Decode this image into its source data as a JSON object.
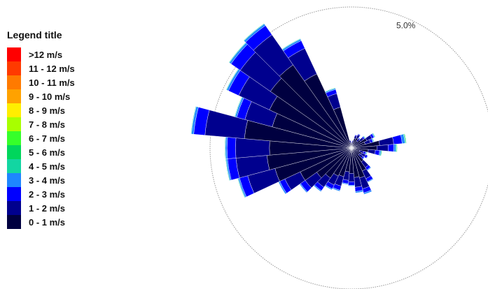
{
  "legend": {
    "title": "Legend title",
    "items": [
      {
        "label": ">12 m/s",
        "color": "#ff0000"
      },
      {
        "label": "11 - 12 m/s",
        "color": "#ff3a00"
      },
      {
        "label": "10 - 11 m/s",
        "color": "#ff7a00"
      },
      {
        "label": "9 - 10 m/s",
        "color": "#ffa200"
      },
      {
        "label": "8 - 9 m/s",
        "color": "#ffee00"
      },
      {
        "label": "7 - 8 m/s",
        "color": "#a8ff00"
      },
      {
        "label": "6 - 7 m/s",
        "color": "#36ff2a"
      },
      {
        "label": "5 - 6 m/s",
        "color": "#00d65c"
      },
      {
        "label": "4 - 5 m/s",
        "color": "#12d6a2"
      },
      {
        "label": "3 - 4 m/s",
        "color": "#1e86ff"
      },
      {
        "label": "2 - 3 m/s",
        "color": "#0000ff"
      },
      {
        "label": "1 - 2 m/s",
        "color": "#00008e"
      },
      {
        "label": "0 - 1 m/s",
        "color": "#000040"
      }
    ]
  },
  "chart_data": {
    "type": "windrose",
    "ring_labels": [
      "5.0%"
    ],
    "ring_values": [
      5.0
    ],
    "sector_width_deg": 10,
    "speed_bins": [
      "0 - 1 m/s",
      "1 - 2 m/s",
      "2 - 3 m/s",
      "3 - 4 m/s",
      "4 - 5 m/s",
      "5 - 6 m/s"
    ],
    "bin_colors": [
      "#000040",
      "#00008e",
      "#0000ff",
      "#1e86ff",
      "#12d6a2",
      "#00d65c"
    ],
    "sectors": [
      {
        "direction_deg": 0,
        "frequencies": [
          0.15,
          0.05,
          0.02,
          0,
          0,
          0
        ]
      },
      {
        "direction_deg": 10,
        "frequencies": [
          0.2,
          0.05,
          0.02,
          0,
          0,
          0
        ]
      },
      {
        "direction_deg": 20,
        "frequencies": [
          0.35,
          0.1,
          0.03,
          0,
          0,
          0
        ]
      },
      {
        "direction_deg": 30,
        "frequencies": [
          0.4,
          0.12,
          0.03,
          0.01,
          0,
          0
        ]
      },
      {
        "direction_deg": 40,
        "frequencies": [
          0.3,
          0.1,
          0.03,
          0.02,
          0,
          0
        ]
      },
      {
        "direction_deg": 50,
        "frequencies": [
          0.4,
          0.12,
          0.05,
          0.02,
          0.02,
          0
        ]
      },
      {
        "direction_deg": 60,
        "frequencies": [
          0.6,
          0.2,
          0.08,
          0.03,
          0.02,
          0
        ]
      },
      {
        "direction_deg": 70,
        "frequencies": [
          0.5,
          0.2,
          0.08,
          0.03,
          0.02,
          0
        ]
      },
      {
        "direction_deg": 80,
        "frequencies": [
          1.0,
          0.5,
          0.3,
          0.1,
          0.03,
          0.02
        ]
      },
      {
        "direction_deg": 90,
        "frequencies": [
          0.9,
          0.4,
          0.2,
          0.07,
          0.03,
          0.02
        ]
      },
      {
        "direction_deg": 100,
        "frequencies": [
          0.6,
          0.25,
          0.15,
          0.05,
          0.03,
          0.01
        ]
      },
      {
        "direction_deg": 110,
        "frequencies": [
          0.3,
          0.15,
          0.08,
          0.03,
          0.02,
          0
        ]
      },
      {
        "direction_deg": 120,
        "frequencies": [
          0.4,
          0.15,
          0.08,
          0.02,
          0,
          0
        ]
      },
      {
        "direction_deg": 130,
        "frequencies": [
          0.35,
          0.15,
          0.05,
          0.02,
          0,
          0
        ]
      },
      {
        "direction_deg": 140,
        "frequencies": [
          0.6,
          0.25,
          0.1,
          0.03,
          0,
          0
        ]
      },
      {
        "direction_deg": 150,
        "frequencies": [
          0.9,
          0.3,
          0.12,
          0.03,
          0,
          0
        ]
      },
      {
        "direction_deg": 160,
        "frequencies": [
          1.1,
          0.4,
          0.15,
          0.05,
          0,
          0
        ]
      },
      {
        "direction_deg": 170,
        "frequencies": [
          1.05,
          0.35,
          0.15,
          0.05,
          0,
          0
        ]
      },
      {
        "direction_deg": 180,
        "frequencies": [
          0.9,
          0.3,
          0.12,
          0.03,
          0,
          0
        ]
      },
      {
        "direction_deg": 190,
        "frequencies": [
          0.85,
          0.3,
          0.12,
          0.03,
          0,
          0
        ]
      },
      {
        "direction_deg": 200,
        "frequencies": [
          1.05,
          0.35,
          0.15,
          0.04,
          0,
          0
        ]
      },
      {
        "direction_deg": 210,
        "frequencies": [
          1.1,
          0.35,
          0.15,
          0.04,
          0,
          0
        ]
      },
      {
        "direction_deg": 220,
        "frequencies": [
          1.3,
          0.4,
          0.15,
          0.04,
          0,
          0
        ]
      },
      {
        "direction_deg": 230,
        "frequencies": [
          1.5,
          0.5,
          0.2,
          0.04,
          0,
          0
        ]
      },
      {
        "direction_deg": 240,
        "frequencies": [
          2.0,
          0.6,
          0.2,
          0.05,
          0,
          0
        ]
      },
      {
        "direction_deg": 250,
        "frequencies": [
          2.8,
          1.0,
          0.3,
          0.05,
          0.02,
          0
        ]
      },
      {
        "direction_deg": 260,
        "frequencies": [
          3.0,
          1.1,
          0.3,
          0.05,
          0.02,
          0
        ]
      },
      {
        "direction_deg": 270,
        "frequencies": [
          2.9,
          1.2,
          0.3,
          0.06,
          0.02,
          0
        ]
      },
      {
        "direction_deg": 280,
        "frequencies": [
          3.8,
          1.4,
          0.4,
          0.08,
          0.02,
          0
        ]
      },
      {
        "direction_deg": 290,
        "frequencies": [
          2.9,
          1.0,
          0.3,
          0.06,
          0.02,
          0
        ]
      },
      {
        "direction_deg": 300,
        "frequencies": [
          3.2,
          1.2,
          0.4,
          0.07,
          0.02,
          0
        ]
      },
      {
        "direction_deg": 310,
        "frequencies": [
          3.5,
          1.3,
          0.4,
          0.07,
          0.02,
          0
        ]
      },
      {
        "direction_deg": 320,
        "frequencies": [
          3.6,
          1.3,
          0.4,
          0.07,
          0.02,
          0
        ]
      },
      {
        "direction_deg": 330,
        "frequencies": [
          2.9,
          1.0,
          0.3,
          0.06,
          0.02,
          0
        ]
      },
      {
        "direction_deg": 340,
        "frequencies": [
          1.5,
          0.5,
          0.15,
          0.04,
          0.02,
          0
        ]
      },
      {
        "direction_deg": 350,
        "frequencies": [
          0.2,
          0.06,
          0.02,
          0,
          0,
          0
        ]
      }
    ]
  }
}
